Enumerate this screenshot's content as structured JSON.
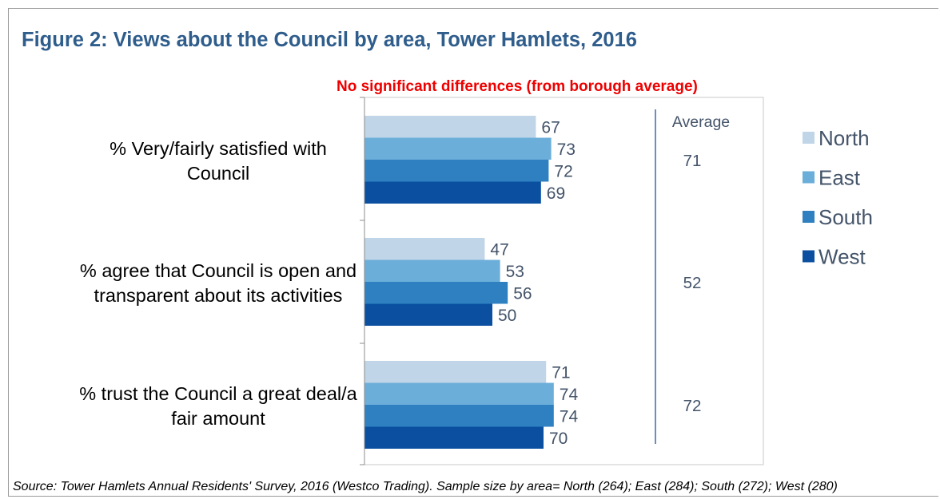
{
  "title": "Figure 2: Views about the Council by area, Tower Hamlets, 2016",
  "subtitle": "No significant differences (from borough average)",
  "source": "Source: Tower Hamlets Annual Residents' Survey, 2016 (Westco Trading). Sample size by area= North (264); East (284); South (272); West (280)",
  "chart_data": {
    "type": "bar",
    "orientation": "horizontal",
    "categories": [
      [
        "% Very/fairly satisfied with",
        "Council"
      ],
      [
        "% agree that Council is open and",
        "transparent about its activities"
      ],
      [
        "% trust the Council a great deal/a",
        "fair amount"
      ]
    ],
    "series": [
      {
        "name": "North",
        "color": "#c0d5e7",
        "values": [
          67,
          47,
          71
        ]
      },
      {
        "name": "East",
        "color": "#6baed9",
        "values": [
          73,
          53,
          74
        ]
      },
      {
        "name": "South",
        "color": "#2e80c0",
        "values": [
          72,
          56,
          74
        ]
      },
      {
        "name": "West",
        "color": "#0a4fa0",
        "values": [
          69,
          50,
          70
        ]
      }
    ],
    "average": {
      "label": "Average",
      "values": [
        71,
        52,
        72
      ]
    },
    "xlim": [
      0,
      100
    ],
    "legend_position": "right",
    "grid": false
  }
}
